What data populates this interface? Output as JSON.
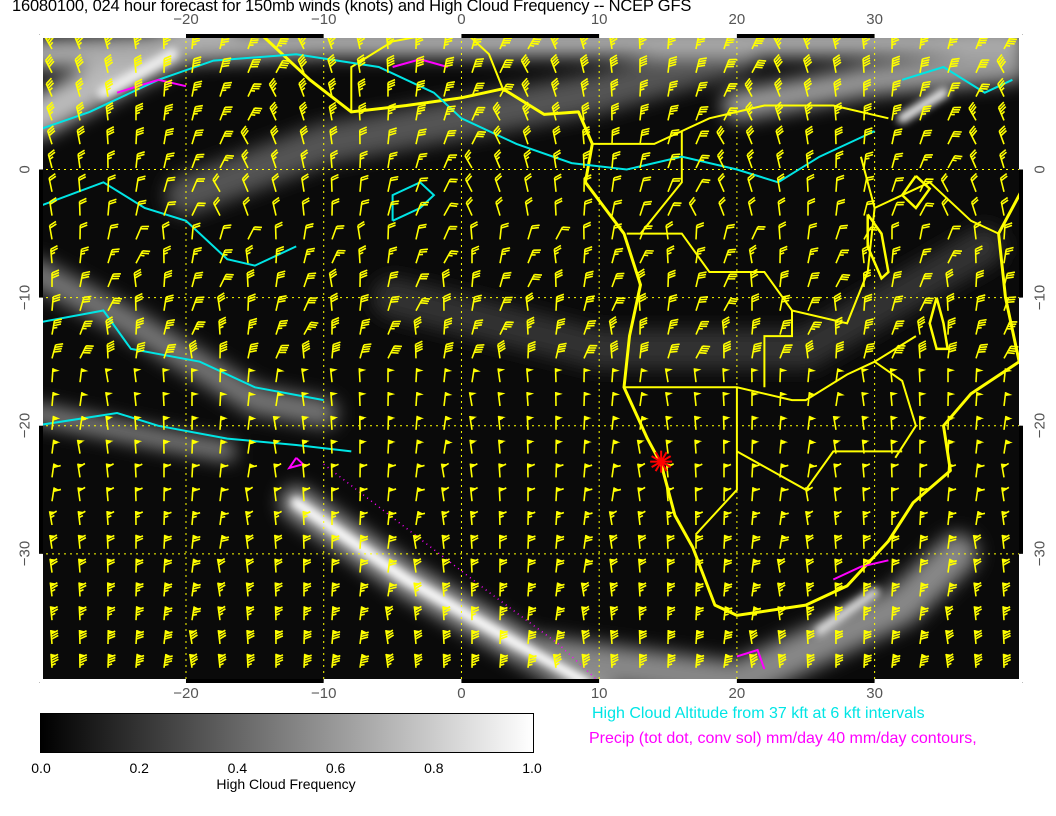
{
  "title": "16080100, 024 hour forecast for 150mb winds (knots) and High Cloud Frequency -- NCEP GFS",
  "map": {
    "lon_range": [
      -30.6,
      40.7
    ],
    "lat_range": [
      -40,
      10.5
    ],
    "lon_ticks": [
      -20,
      -10,
      0,
      10,
      20,
      30
    ],
    "lon_tick_labels": [
      "−20",
      "−10",
      "0",
      "10",
      "20",
      "30"
    ],
    "lat_ticks": [
      0,
      -10,
      -20,
      -30
    ],
    "lat_tick_labels": [
      "0",
      "−10",
      "−20",
      "−30"
    ],
    "marker": {
      "lon": 14.5,
      "lat": -22.8,
      "symbol": "red-star"
    },
    "colors": {
      "barbs": "#ffff00",
      "coast": "#ffff00",
      "cloud_altitude_contours": "#00e5e5",
      "precip_contours": "#ff00ff",
      "marker": "#ff0000",
      "background": "#000000"
    }
  },
  "colorbar": {
    "labels": [
      "0.0",
      "0.2",
      "0.4",
      "0.6",
      "0.8",
      "1.0"
    ],
    "title": "High Cloud Frequency",
    "range": [
      0,
      1
    ],
    "colormap": "black-to-white"
  },
  "legend": {
    "cloud_altitude": "High Cloud Altitude from 37 kft at 6 kft intervals",
    "precip": "Precip (tot dot, conv sol) mm/day 40 mm/day contours,"
  }
}
